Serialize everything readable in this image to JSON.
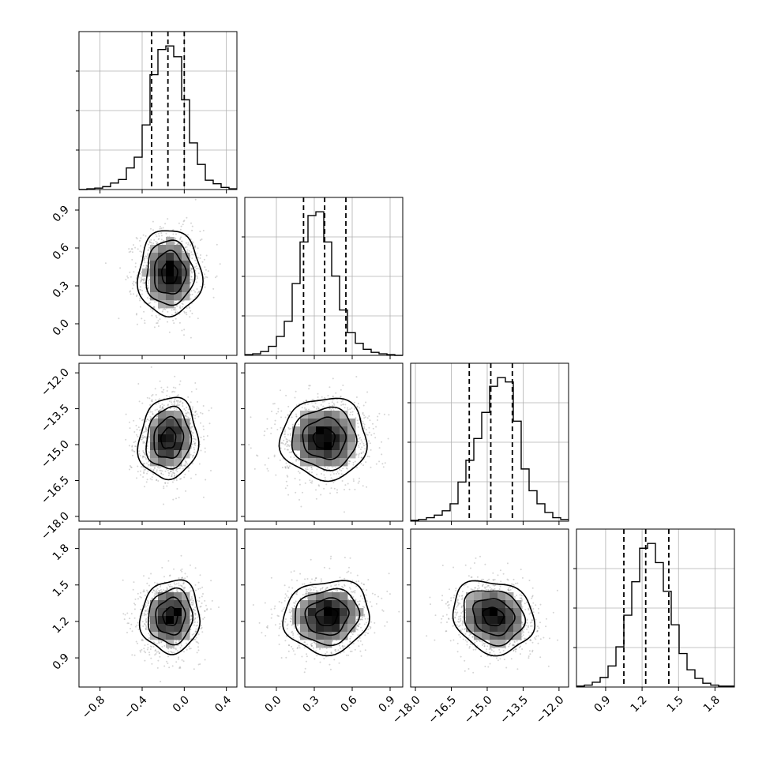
{
  "chart_data": {
    "type": "corner",
    "title": "",
    "grid": true,
    "quantiles": [
      0.16,
      0.5,
      0.84
    ],
    "parameters": [
      {
        "label": "",
        "range": [
          -1.0,
          0.5
        ],
        "ticks": [
          "−0.8",
          "−0.4",
          "0.0",
          "0.4"
        ],
        "tick_values": [
          -0.8,
          -0.4,
          0.0,
          0.4
        ],
        "quantile_values": [
          -0.31,
          -0.155,
          0.0
        ],
        "hist_step": 0.075,
        "hist_counts": [
          0,
          1,
          2,
          4,
          9,
          14,
          30,
          45,
          90,
          160,
          195,
          200,
          185,
          125,
          65,
          35,
          13,
          8,
          3,
          1
        ]
      },
      {
        "label": "",
        "range": [
          -0.25,
          1.0
        ],
        "ticks": [
          "0.0",
          "0.3",
          "0.6",
          "0.9"
        ],
        "tick_values": [
          0.0,
          0.3,
          0.6,
          0.9
        ],
        "quantile_values": [
          0.215,
          0.382,
          0.55
        ],
        "hist_step": 0.0625,
        "hist_counts": [
          1,
          2,
          5,
          12,
          25,
          45,
          95,
          150,
          185,
          190,
          150,
          105,
          60,
          30,
          16,
          8,
          4,
          2,
          1,
          0
        ]
      },
      {
        "label": "",
        "range": [
          -18.2,
          -11.6
        ],
        "ticks": [
          "−18.0",
          "−16.5",
          "−15.0",
          "−13.5",
          "−12.0"
        ],
        "tick_values": [
          -18.0,
          -16.5,
          -15.0,
          -13.5,
          -12.0
        ],
        "quantile_values": [
          -15.75,
          -14.85,
          -13.95
        ],
        "hist_step": 0.33,
        "hist_counts": [
          1,
          2,
          4,
          7,
          12,
          20,
          45,
          70,
          95,
          125,
          155,
          165,
          160,
          115,
          60,
          35,
          20,
          10,
          4,
          2
        ]
      },
      {
        "label": "",
        "range": [
          0.66,
          1.96
        ],
        "ticks": [
          "0.9",
          "1.2",
          "1.5",
          "1.8"
        ],
        "tick_values": [
          0.9,
          1.2,
          1.5,
          1.8
        ],
        "quantile_values": [
          1.05,
          1.23,
          1.42
        ],
        "hist_step": 0.065,
        "hist_counts": [
          1,
          2,
          5,
          10,
          22,
          42,
          75,
          110,
          145,
          150,
          130,
          100,
          65,
          35,
          18,
          9,
          4,
          2,
          1,
          1
        ]
      }
    ],
    "pairs": [
      {
        "x_param": 0,
        "y_param": 1,
        "mean": [
          -0.14,
          0.4
        ],
        "sigma": [
          0.15,
          0.17
        ],
        "rho": 0.0
      },
      {
        "x_param": 0,
        "y_param": 2,
        "mean": [
          -0.15,
          -14.75
        ],
        "sigma": [
          0.14,
          0.85
        ],
        "rho": 0.08
      },
      {
        "x_param": 1,
        "y_param": 2,
        "mean": [
          0.38,
          -14.75
        ],
        "sigma": [
          0.17,
          0.85
        ],
        "rho": 0.0
      },
      {
        "x_param": 0,
        "y_param": 3,
        "mean": [
          -0.13,
          1.24
        ],
        "sigma": [
          0.14,
          0.15
        ],
        "rho": 0.05
      },
      {
        "x_param": 1,
        "y_param": 3,
        "mean": [
          0.4,
          1.24
        ],
        "sigma": [
          0.17,
          0.15
        ],
        "rho": 0.08
      },
      {
        "x_param": 2,
        "y_param": 3,
        "mean": [
          -14.75,
          1.24
        ],
        "sigma": [
          0.85,
          0.15
        ],
        "rho": -0.15
      }
    ]
  }
}
